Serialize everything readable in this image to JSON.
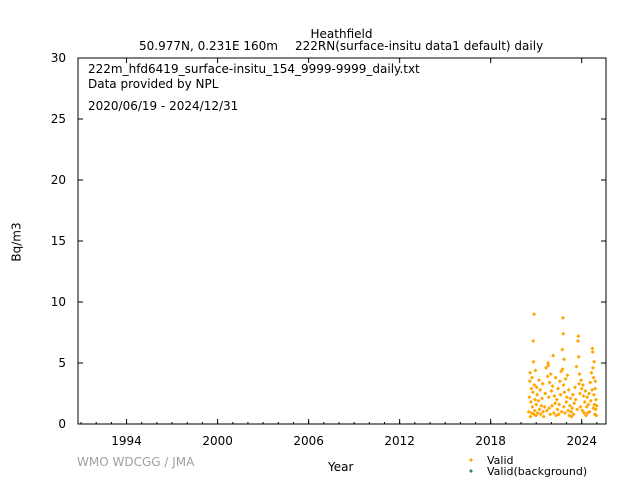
{
  "header": {
    "station": "Heathfield",
    "location": "50.977N, 0.231E 160m",
    "dataset": "222RN(surface-insitu data1 default) daily"
  },
  "info": {
    "filename": "222m_hfd6419_surface-insitu_154_9999-9999_daily.txt",
    "provider": "Data provided by NPL",
    "period": "2020/06/19 - 2024/12/31"
  },
  "footer": {
    "credit": "WMO WDCGG / JMA"
  },
  "chart_data": {
    "type": "scatter",
    "xlabel": "Year",
    "ylabel": "Bq/m3",
    "xlim": [
      1990.8,
      2025.6
    ],
    "ylim": [
      0,
      30
    ],
    "x_ticks": [
      "1994",
      "2000",
      "2006",
      "2012",
      "2018",
      "2024"
    ],
    "y_ticks": [
      "0",
      "5",
      "10",
      "15",
      "20",
      "25",
      "30"
    ],
    "legend": {
      "placement": "bottom-right",
      "entries": [
        {
          "name": "Valid",
          "color": "#ffa500"
        },
        {
          "name": "Valid(background)",
          "color": "#2e8b57"
        }
      ]
    },
    "series": [
      {
        "name": "Valid",
        "color": "#ffa500",
        "points": [
          [
            2020.5,
            1.0
          ],
          [
            2020.55,
            2.2
          ],
          [
            2020.58,
            3.5
          ],
          [
            2020.6,
            4.2
          ],
          [
            2020.62,
            0.6
          ],
          [
            2020.65,
            1.8
          ],
          [
            2020.68,
            2.9
          ],
          [
            2020.7,
            0.9
          ],
          [
            2020.72,
            3.8
          ],
          [
            2020.75,
            1.4
          ],
          [
            2020.78,
            2.6
          ],
          [
            2020.8,
            6.8
          ],
          [
            2020.82,
            5.1
          ],
          [
            2020.84,
            0.8
          ],
          [
            2020.86,
            9.0
          ],
          [
            2020.88,
            3.2
          ],
          [
            2020.9,
            1.1
          ],
          [
            2020.92,
            2.0
          ],
          [
            2020.95,
            4.4
          ],
          [
            2020.98,
            0.7
          ],
          [
            2021.0,
            1.6
          ],
          [
            2021.03,
            3.0
          ],
          [
            2021.06,
            2.4
          ],
          [
            2021.1,
            0.9
          ],
          [
            2021.14,
            1.9
          ],
          [
            2021.18,
            3.6
          ],
          [
            2021.22,
            1.2
          ],
          [
            2021.26,
            2.8
          ],
          [
            2021.3,
            0.8
          ],
          [
            2021.34,
            1.5
          ],
          [
            2021.38,
            2.1
          ],
          [
            2021.42,
            3.3
          ],
          [
            2021.46,
            1.0
          ],
          [
            2021.5,
            0.6
          ],
          [
            2021.55,
            1.4
          ],
          [
            2021.6,
            2.5
          ],
          [
            2021.65,
            4.6
          ],
          [
            2021.7,
            1.1
          ],
          [
            2021.75,
            3.9
          ],
          [
            2021.78,
            5.0
          ],
          [
            2021.8,
            4.8
          ],
          [
            2021.82,
            2.2
          ],
          [
            2021.85,
            1.3
          ],
          [
            2021.88,
            3.4
          ],
          [
            2021.92,
            0.8
          ],
          [
            2021.96,
            4.1
          ],
          [
            2022.0,
            2.7
          ],
          [
            2022.04,
            1.5
          ],
          [
            2022.08,
            3.1
          ],
          [
            2022.12,
            5.6
          ],
          [
            2022.16,
            0.9
          ],
          [
            2022.2,
            2.3
          ],
          [
            2022.24,
            1.7
          ],
          [
            2022.28,
            3.8
          ],
          [
            2022.32,
            0.7
          ],
          [
            2022.36,
            2.0
          ],
          [
            2022.4,
            1.2
          ],
          [
            2022.44,
            2.9
          ],
          [
            2022.48,
            0.8
          ],
          [
            2022.52,
            1.6
          ],
          [
            2022.56,
            3.5
          ],
          [
            2022.6,
            2.4
          ],
          [
            2022.64,
            4.3
          ],
          [
            2022.68,
            1.0
          ],
          [
            2022.72,
            6.1
          ],
          [
            2022.74,
            4.5
          ],
          [
            2022.76,
            8.7
          ],
          [
            2022.78,
            7.4
          ],
          [
            2022.8,
            3.2
          ],
          [
            2022.82,
            1.4
          ],
          [
            2022.84,
            5.3
          ],
          [
            2022.86,
            2.6
          ],
          [
            2022.9,
            0.9
          ],
          [
            2022.94,
            3.7
          ],
          [
            2022.98,
            1.8
          ],
          [
            2023.02,
            2.2
          ],
          [
            2023.06,
            4.0
          ],
          [
            2023.1,
            1.1
          ],
          [
            2023.14,
            2.8
          ],
          [
            2023.18,
            0.7
          ],
          [
            2023.22,
            1.5
          ],
          [
            2023.26,
            2.1
          ],
          [
            2023.3,
            1.0
          ],
          [
            2023.34,
            0.6
          ],
          [
            2023.38,
            1.3
          ],
          [
            2023.42,
            2.4
          ],
          [
            2023.46,
            0.8
          ],
          [
            2023.5,
            1.7
          ],
          [
            2023.55,
            3.0
          ],
          [
            2023.6,
            2.0
          ],
          [
            2023.65,
            4.7
          ],
          [
            2023.7,
            1.2
          ],
          [
            2023.75,
            6.8
          ],
          [
            2023.78,
            7.2
          ],
          [
            2023.8,
            5.5
          ],
          [
            2023.82,
            3.3
          ],
          [
            2023.85,
            4.1
          ],
          [
            2023.88,
            2.5
          ],
          [
            2023.92,
            1.4
          ],
          [
            2023.96,
            3.6
          ],
          [
            2024.0,
            2.9
          ],
          [
            2024.04,
            1.1
          ],
          [
            2024.08,
            3.2
          ],
          [
            2024.12,
            2.3
          ],
          [
            2024.16,
            0.9
          ],
          [
            2024.2,
            1.8
          ],
          [
            2024.24,
            2.7
          ],
          [
            2024.28,
            0.7
          ],
          [
            2024.32,
            1.4
          ],
          [
            2024.36,
            2.2
          ],
          [
            2024.4,
            0.9
          ],
          [
            2024.44,
            1.6
          ],
          [
            2024.48,
            2.5
          ],
          [
            2024.52,
            1.0
          ],
          [
            2024.56,
            3.4
          ],
          [
            2024.6,
            1.9
          ],
          [
            2024.64,
            4.2
          ],
          [
            2024.68,
            2.8
          ],
          [
            2024.7,
            6.2
          ],
          [
            2024.72,
            5.9
          ],
          [
            2024.74,
            4.6
          ],
          [
            2024.76,
            1.3
          ],
          [
            2024.78,
            3.8
          ],
          [
            2024.8,
            2.4
          ],
          [
            2024.82,
            5.1
          ],
          [
            2024.84,
            1.6
          ],
          [
            2024.86,
            0.8
          ],
          [
            2024.88,
            2.9
          ],
          [
            2024.9,
            3.5
          ],
          [
            2024.92,
            1.2
          ],
          [
            2024.94,
            2.0
          ],
          [
            2024.96,
            0.7
          ],
          [
            2024.98,
            1.5
          ]
        ]
      }
    ]
  }
}
